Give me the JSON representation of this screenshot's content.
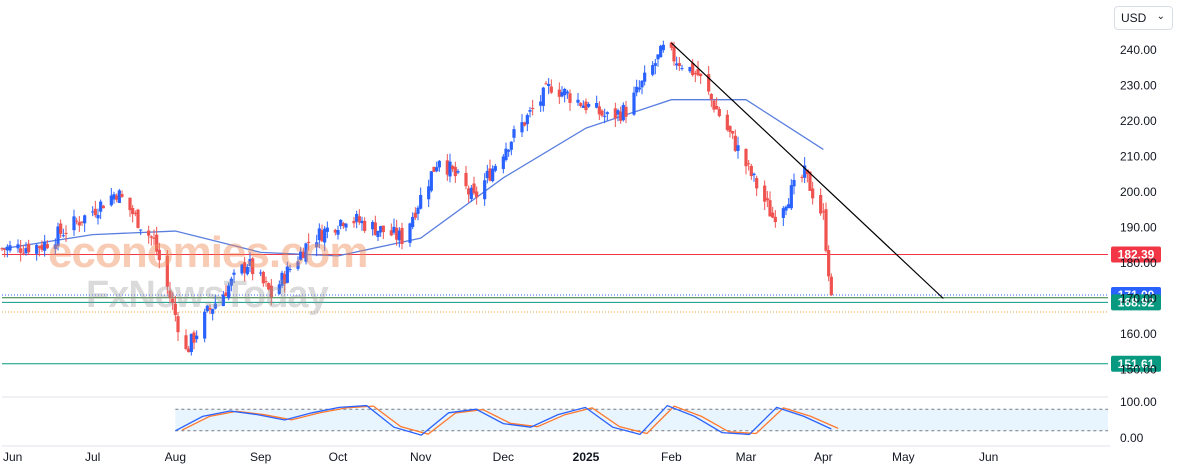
{
  "currency_selector": {
    "label": "USD",
    "icon": "chevron-down-icon"
  },
  "watermark": {
    "line1": "economies.com",
    "line2": "FxNewsToday"
  },
  "colors": {
    "up": "#2962ff",
    "down": "#ef5350",
    "ma": "#5b7fe0",
    "trend": "#000000",
    "support": "#089981",
    "resistance": "#f23645",
    "price": "#2962ff",
    "stoch_k": "#2962ff",
    "stoch_d": "#ff7a2f"
  },
  "chart_data": {
    "type": "candlestick",
    "ylim": [
      150,
      245
    ],
    "y_ticks": [
      "240.00",
      "230.00",
      "220.00",
      "210.00",
      "200.00",
      "190.00",
      "180.00",
      "170.00",
      "160.00",
      "150.00"
    ],
    "x_ticks": [
      "Jun",
      "Jul",
      "Aug",
      "Sep",
      "Oct",
      "Nov",
      "Dec",
      "2025",
      "Feb",
      "Mar",
      "Apr",
      "May",
      "Jun"
    ],
    "ohlc_keypoints": [
      {
        "date": "2024-05-28",
        "close": 184
      },
      {
        "date": "2024-06-12",
        "close": 185
      },
      {
        "date": "2024-06-28",
        "close": 193
      },
      {
        "date": "2024-07-10",
        "close": 200
      },
      {
        "date": "2024-07-24",
        "close": 186
      },
      {
        "date": "2024-08-05",
        "close": 155
      },
      {
        "date": "2024-08-13",
        "close": 166
      },
      {
        "date": "2024-08-28",
        "close": 180
      },
      {
        "date": "2024-09-06",
        "close": 171
      },
      {
        "date": "2024-09-20",
        "close": 186
      },
      {
        "date": "2024-10-04",
        "close": 193
      },
      {
        "date": "2024-10-25",
        "close": 187
      },
      {
        "date": "2024-11-08",
        "close": 210
      },
      {
        "date": "2024-11-21",
        "close": 198
      },
      {
        "date": "2024-12-03",
        "close": 213
      },
      {
        "date": "2024-12-20",
        "close": 230
      },
      {
        "date": "2025-01-10",
        "close": 221
      },
      {
        "date": "2025-01-17",
        "close": 223
      },
      {
        "date": "2025-01-31",
        "close": 240
      },
      {
        "date": "2025-02-13",
        "close": 233
      },
      {
        "date": "2025-02-28",
        "close": 212
      },
      {
        "date": "2025-03-13",
        "close": 193
      },
      {
        "date": "2025-03-25",
        "close": 205
      },
      {
        "date": "2025-04-01",
        "close": 193
      },
      {
        "date": "2025-04-03",
        "close": 178
      },
      {
        "date": "2025-04-04",
        "close": 169
      }
    ],
    "moving_average": [
      {
        "date": "2024-05-28",
        "value": 184
      },
      {
        "date": "2024-07-01",
        "value": 188
      },
      {
        "date": "2024-08-01",
        "value": 189
      },
      {
        "date": "2024-09-02",
        "value": 183
      },
      {
        "date": "2024-10-01",
        "value": 182
      },
      {
        "date": "2024-11-01",
        "value": 187
      },
      {
        "date": "2024-12-02",
        "value": 204
      },
      {
        "date": "2025-01-02",
        "value": 218
      },
      {
        "date": "2025-02-03",
        "value": 226
      },
      {
        "date": "2025-03-03",
        "value": 226
      },
      {
        "date": "2025-04-01",
        "value": 212
      }
    ],
    "trend_line": [
      {
        "date": "2025-02-03",
        "value": 242
      },
      {
        "date": "2025-05-16",
        "value": 170
      }
    ],
    "horizontal_levels": [
      {
        "label": "182.39",
        "value": 182.39,
        "kind": "resistance"
      },
      {
        "label": "171.00",
        "value": 171.0,
        "kind": "price"
      },
      {
        "label": "168.92",
        "value": 168.92,
        "kind": "support"
      },
      {
        "label": "151.61",
        "value": 151.61,
        "kind": "support"
      }
    ],
    "stochastic": {
      "ylim": [
        0,
        100
      ],
      "y_ticks": [
        "100.00",
        "0.00"
      ],
      "band": [
        20,
        80
      ],
      "k": [
        20,
        60,
        75,
        65,
        50,
        70,
        85,
        90,
        30,
        8,
        70,
        80,
        40,
        30,
        65,
        85,
        30,
        10,
        90,
        60,
        15,
        10,
        85,
        60,
        25
      ]
    }
  }
}
